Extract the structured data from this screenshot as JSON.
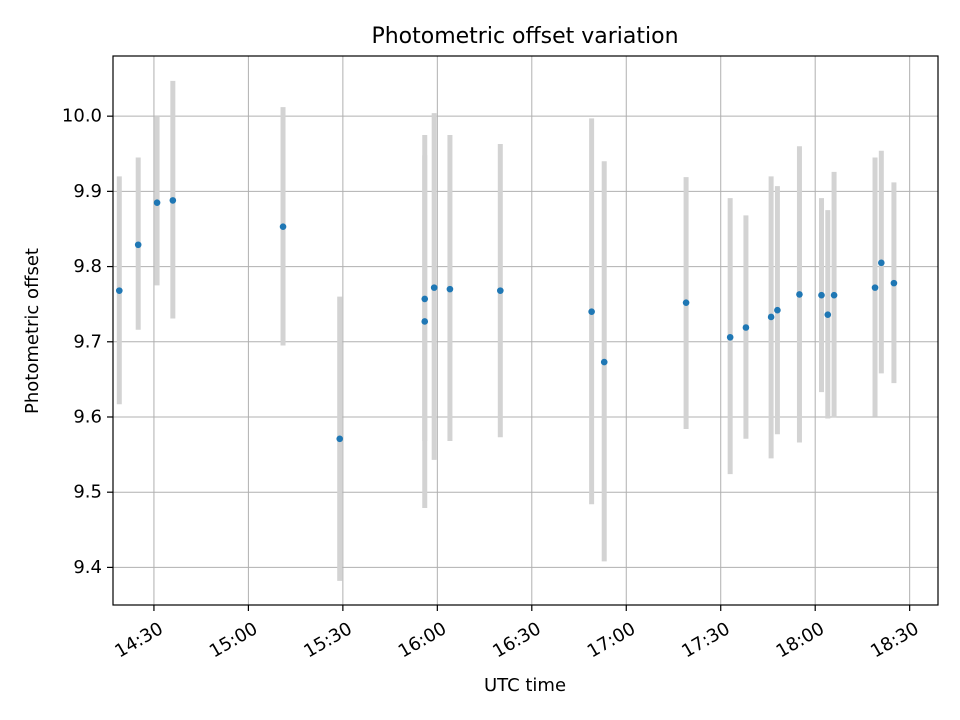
{
  "chart_data": {
    "type": "scatter",
    "title": "Photometric offset variation",
    "xlabel": "UTC time",
    "ylabel": "Photometric offset",
    "xlim": [
      "14:17",
      "18:39"
    ],
    "ylim": [
      9.35,
      10.08
    ],
    "x_ticks": [
      "14:30",
      "15:00",
      "15:30",
      "16:00",
      "16:30",
      "17:00",
      "17:30",
      "18:00",
      "18:30"
    ],
    "y_ticks": [
      9.4,
      9.5,
      9.6,
      9.7,
      9.8,
      9.9,
      10.0
    ],
    "grid": true,
    "colors": {
      "points": "#1f77b4",
      "error_bars": "#d3d3d3",
      "grid": "#b0b0b0"
    },
    "points": [
      {
        "x": "14:19",
        "y": 9.768,
        "low": 9.617,
        "high": 9.92
      },
      {
        "x": "14:25",
        "y": 9.829,
        "low": 9.716,
        "high": 9.945
      },
      {
        "x": "14:31",
        "y": 9.885,
        "low": 9.775,
        "high": 10.0
      },
      {
        "x": "14:36",
        "y": 9.888,
        "low": 9.731,
        "high": 10.047
      },
      {
        "x": "15:11",
        "y": 9.853,
        "low": 9.695,
        "high": 10.012
      },
      {
        "x": "15:29",
        "y": 9.571,
        "low": 9.382,
        "high": 9.76
      },
      {
        "x": "15:56",
        "y": 9.757,
        "low": 9.568,
        "high": 9.948
      },
      {
        "x": "15:56",
        "y": 9.727,
        "low": 9.479,
        "high": 9.975
      },
      {
        "x": "15:59",
        "y": 9.772,
        "low": 9.543,
        "high": 10.004
      },
      {
        "x": "16:04",
        "y": 9.77,
        "low": 9.568,
        "high": 9.975
      },
      {
        "x": "16:20",
        "y": 9.768,
        "low": 9.573,
        "high": 9.963
      },
      {
        "x": "16:49",
        "y": 9.74,
        "low": 9.484,
        "high": 9.997
      },
      {
        "x": "16:53",
        "y": 9.673,
        "low": 9.408,
        "high": 9.94
      },
      {
        "x": "17:19",
        "y": 9.752,
        "low": 9.584,
        "high": 9.919
      },
      {
        "x": "17:33",
        "y": 9.706,
        "low": 9.524,
        "high": 9.891
      },
      {
        "x": "17:38",
        "y": 9.719,
        "low": 9.571,
        "high": 9.868
      },
      {
        "x": "17:46",
        "y": 9.733,
        "low": 9.545,
        "high": 9.92
      },
      {
        "x": "17:48",
        "y": 9.742,
        "low": 9.577,
        "high": 9.907
      },
      {
        "x": "17:55",
        "y": 9.763,
        "low": 9.566,
        "high": 9.96
      },
      {
        "x": "18:02",
        "y": 9.762,
        "low": 9.633,
        "high": 9.891
      },
      {
        "x": "18:04",
        "y": 9.736,
        "low": 9.598,
        "high": 9.875
      },
      {
        "x": "18:06",
        "y": 9.762,
        "low": 9.599,
        "high": 9.926
      },
      {
        "x": "18:19",
        "y": 9.772,
        "low": 9.601,
        "high": 9.945
      },
      {
        "x": "18:21",
        "y": 9.805,
        "low": 9.658,
        "high": 9.954
      },
      {
        "x": "18:25",
        "y": 9.778,
        "low": 9.645,
        "high": 9.912
      }
    ]
  }
}
